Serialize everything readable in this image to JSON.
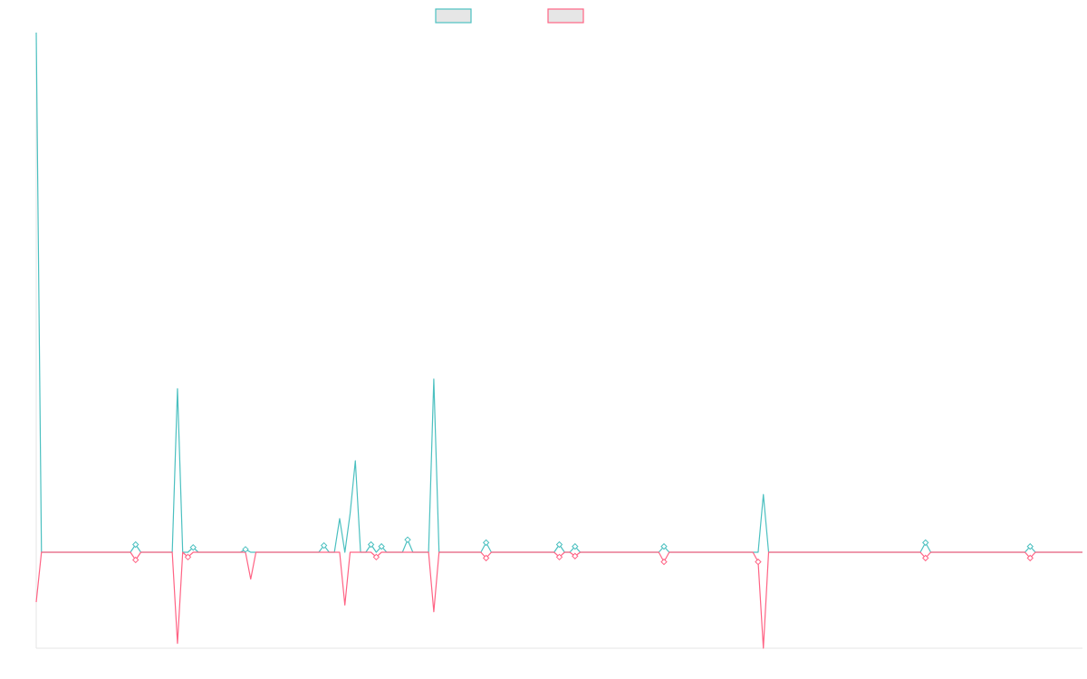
{
  "chart_data": {
    "type": "line",
    "title": "",
    "xlabel": "",
    "ylabel": "",
    "x": [
      0,
      1,
      2,
      3,
      4,
      5,
      6,
      7,
      8,
      9,
      10,
      11,
      12,
      13,
      14,
      15,
      16,
      17,
      18,
      19,
      20,
      21,
      22,
      23,
      24,
      25,
      26,
      27,
      28,
      29,
      30,
      31,
      32,
      33,
      34,
      35,
      36,
      37,
      38,
      39,
      40,
      41,
      42,
      43,
      44,
      45,
      46,
      47,
      48,
      49,
      50,
      51,
      52,
      53,
      54,
      55,
      56,
      57,
      58,
      59,
      60,
      61,
      62,
      63,
      64,
      65,
      66,
      67,
      68,
      69,
      70,
      71,
      72,
      73,
      74,
      75,
      76,
      77,
      78,
      79,
      80,
      81,
      82,
      83,
      84,
      85,
      86,
      87,
      88,
      89,
      90,
      91,
      92,
      93,
      94,
      95,
      96,
      97,
      98,
      99,
      100,
      101,
      102,
      103,
      104,
      105,
      106,
      107,
      108,
      109,
      110,
      111,
      112,
      113,
      114,
      115,
      116,
      117,
      118,
      119,
      120,
      121,
      122,
      123,
      124,
      125,
      126,
      127,
      128,
      129,
      130,
      131,
      132,
      133,
      134,
      135,
      136,
      137,
      138,
      139,
      140,
      141,
      142,
      143,
      144,
      145,
      146,
      147,
      148,
      149,
      150,
      151,
      152,
      153,
      154,
      155,
      156,
      157,
      158,
      159,
      160,
      161,
      162,
      163,
      164,
      165,
      166,
      167,
      168,
      169,
      170,
      171,
      172,
      173,
      174,
      175,
      176,
      177,
      178,
      179,
      180,
      181,
      182,
      183,
      184,
      185,
      186,
      187,
      188,
      189,
      190,
      191,
      192,
      193,
      194,
      195,
      196,
      197,
      198,
      199,
      200
    ],
    "ylim": [
      -100,
      540
    ],
    "series": [
      {
        "color": "#4bc0c0",
        "values": [
          540,
          0,
          0,
          0,
          0,
          0,
          0,
          0,
          0,
          0,
          0,
          0,
          0,
          0,
          0,
          0,
          0,
          0,
          0,
          8,
          0,
          0,
          0,
          0,
          0,
          0,
          0,
          170,
          0,
          0,
          5,
          0,
          0,
          0,
          0,
          0,
          0,
          0,
          0,
          0,
          3,
          0,
          0,
          0,
          0,
          0,
          0,
          0,
          0,
          0,
          0,
          0,
          0,
          0,
          0,
          7,
          0,
          0,
          35,
          0,
          40,
          95,
          0,
          0,
          8,
          0,
          6,
          0,
          0,
          0,
          0,
          13,
          0,
          0,
          0,
          0,
          180,
          0,
          0,
          0,
          0,
          0,
          0,
          0,
          0,
          0,
          10,
          0,
          0,
          0,
          0,
          0,
          0,
          0,
          0,
          0,
          0,
          0,
          0,
          0,
          8,
          0,
          0,
          6,
          0,
          0,
          0,
          0,
          0,
          0,
          0,
          0,
          0,
          0,
          0,
          0,
          0,
          0,
          0,
          0,
          6,
          0,
          0,
          0,
          0,
          0,
          0,
          0,
          0,
          0,
          0,
          0,
          0,
          0,
          0,
          0,
          0,
          0,
          0,
          60,
          0,
          0,
          0,
          0,
          0,
          0,
          0,
          0,
          0,
          0,
          0,
          0,
          0,
          0,
          0,
          0,
          0,
          0,
          0,
          0,
          0,
          0,
          0,
          0,
          0,
          0,
          0,
          0,
          0,
          0,
          10,
          0,
          0,
          0,
          0,
          0,
          0,
          0,
          0,
          0,
          0,
          0,
          0,
          0,
          0,
          0,
          0,
          0,
          0,
          0,
          6,
          0,
          0,
          0,
          0,
          0,
          0,
          0,
          0,
          0,
          0
        ]
      },
      {
        "color": "#ff6384",
        "values": [
          -52,
          0,
          0,
          0,
          0,
          0,
          0,
          0,
          0,
          0,
          0,
          0,
          0,
          0,
          0,
          0,
          0,
          0,
          0,
          -8,
          0,
          0,
          0,
          0,
          0,
          0,
          0,
          -95,
          0,
          -5,
          0,
          0,
          0,
          0,
          0,
          0,
          0,
          0,
          0,
          0,
          0,
          -28,
          0,
          0,
          0,
          0,
          0,
          0,
          0,
          0,
          0,
          0,
          0,
          0,
          0,
          0,
          0,
          0,
          0,
          -55,
          0,
          0,
          0,
          0,
          0,
          -5,
          0,
          0,
          0,
          0,
          0,
          0,
          0,
          0,
          0,
          0,
          -62,
          0,
          0,
          0,
          0,
          0,
          0,
          0,
          0,
          0,
          -6,
          0,
          0,
          0,
          0,
          0,
          0,
          0,
          0,
          0,
          0,
          0,
          0,
          0,
          -5,
          0,
          0,
          -4,
          0,
          0,
          0,
          0,
          0,
          0,
          0,
          0,
          0,
          0,
          0,
          0,
          0,
          0,
          0,
          0,
          -10,
          0,
          0,
          0,
          0,
          0,
          0,
          0,
          0,
          0,
          0,
          0,
          0,
          0,
          0,
          0,
          0,
          0,
          -10,
          -100,
          0,
          0,
          0,
          0,
          0,
          0,
          0,
          0,
          0,
          0,
          0,
          0,
          0,
          0,
          0,
          0,
          0,
          0,
          0,
          0,
          0,
          0,
          0,
          0,
          0,
          0,
          0,
          0,
          0,
          0,
          -6,
          0,
          0,
          0,
          0,
          0,
          0,
          0,
          0,
          0,
          0,
          0,
          0,
          0,
          0,
          0,
          0,
          0,
          0,
          0,
          -6,
          0,
          0,
          0,
          0,
          0,
          0,
          0,
          0,
          0,
          0
        ]
      }
    ],
    "legend": {
      "position": "top",
      "box_fill": "#e6e6e6"
    },
    "grid": false
  }
}
